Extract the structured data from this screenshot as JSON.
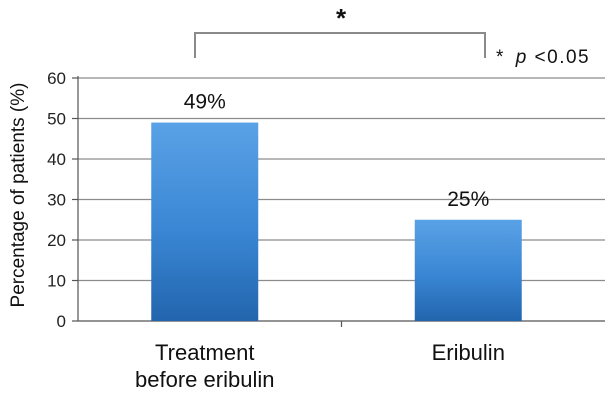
{
  "chart_data": {
    "type": "bar",
    "categories": [
      [
        "Treatment",
        "before eribulin"
      ],
      [
        "Eribulin"
      ]
    ],
    "values": [
      49,
      25
    ],
    "data_labels": [
      "49%",
      "25%"
    ],
    "title": "",
    "xlabel": "",
    "ylabel": "Percentage of patients (%)",
    "ylim": [
      0,
      60
    ],
    "yticks": [
      "0",
      "10",
      "20",
      "30",
      "40",
      "50",
      "60"
    ],
    "grid": true,
    "bar_color": "#3a86d4",
    "bar_color_light": "#5aa2e6",
    "bar_color_dark": "#2265ad",
    "annotations": {
      "significance_star": "*",
      "p_note_star": "*",
      "p_note_p": "p",
      "p_note_rest": "<0.05"
    }
  }
}
